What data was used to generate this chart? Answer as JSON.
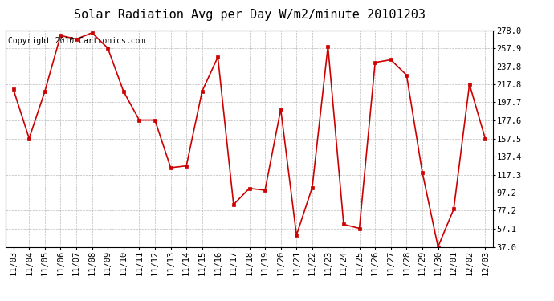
{
  "title": "Solar Radiation Avg per Day W/m2/minute 20101203",
  "copyright_text": "Copyright 2010 Cartronics.com",
  "dates": [
    "11/03",
    "11/04",
    "11/05",
    "11/06",
    "11/07",
    "11/08",
    "11/09",
    "11/10",
    "11/11",
    "11/12",
    "11/13",
    "11/14",
    "11/15",
    "11/16",
    "11/17",
    "11/18",
    "11/19",
    "11/20",
    "11/21",
    "11/22",
    "11/23",
    "11/24",
    "11/25",
    "11/26",
    "11/27",
    "11/28",
    "11/29",
    "11/30",
    "12/01",
    "12/02",
    "12/03"
  ],
  "values": [
    212.0,
    157.5,
    210.0,
    272.0,
    268.0,
    275.0,
    258.0,
    210.0,
    178.0,
    178.0,
    125.0,
    127.0,
    210.0,
    248.0,
    84.0,
    102.0,
    100.0,
    190.0,
    50.0,
    103.0,
    260.0,
    62.0,
    57.5,
    242.0,
    245.0,
    228.0,
    120.0,
    37.0,
    79.0,
    217.8,
    157.5
  ],
  "y_ticks": [
    37.0,
    57.1,
    77.2,
    97.2,
    117.3,
    137.4,
    157.5,
    177.6,
    197.7,
    217.8,
    237.8,
    257.9,
    278.0
  ],
  "ylim": [
    37.0,
    278.0
  ],
  "line_color": "#cc0000",
  "marker_color": "#cc0000",
  "bg_color": "#ffffff",
  "plot_bg_color": "#ffffff",
  "grid_color": "#aaaaaa",
  "title_fontsize": 11,
  "copyright_fontsize": 7,
  "tick_fontsize": 7.5
}
